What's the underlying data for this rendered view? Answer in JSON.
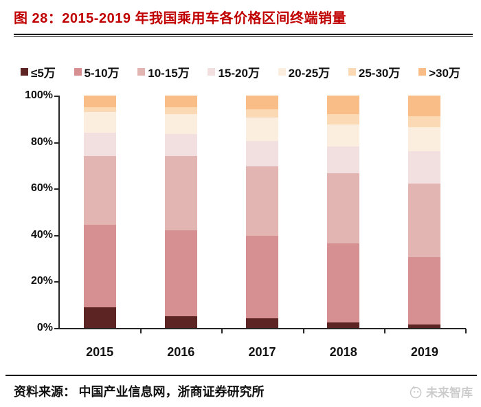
{
  "title": "图 28：2015-2019 年我国乘用车各价格区间终端销量",
  "accent_colors": {
    "title_red": "#C00000",
    "axis_black": "#262626",
    "watermark_gray": "#CCCCCC"
  },
  "chart_data": {
    "type": "bar",
    "stacked": true,
    "normalized_percent": true,
    "grid": false,
    "legend_position": "top",
    "categories": [
      "2015",
      "2016",
      "2017",
      "2018",
      "2019"
    ],
    "series": [
      {
        "name": "≤5万",
        "color": "#5C2423",
        "values": [
          9,
          5,
          4,
          2.5,
          1.5
        ]
      },
      {
        "name": "5-10万",
        "color": "#D69091",
        "values": [
          35.5,
          37,
          35.5,
          34,
          29
        ]
      },
      {
        "name": "10-15万",
        "color": "#E2B5B2",
        "values": [
          29.5,
          32,
          30,
          30,
          31.5
        ]
      },
      {
        "name": "15-20万",
        "color": "#F2E0E1",
        "values": [
          10,
          9.5,
          11,
          11.5,
          14
        ]
      },
      {
        "name": "20-25万",
        "color": "#FCEEDE",
        "values": [
          9,
          8.5,
          10,
          9.5,
          10.5
        ]
      },
      {
        "name": "25-30万",
        "color": "#FBD9B4",
        "values": [
          2,
          3,
          3.5,
          4.5,
          4.5
        ]
      },
      {
        "name": ">30万",
        "color": "#F9BE88",
        "values": [
          5,
          5,
          6,
          8,
          9
        ]
      }
    ],
    "yticks": [
      "0%",
      "20%",
      "40%",
      "60%",
      "80%",
      "100%"
    ],
    "ylim": [
      0,
      100
    ],
    "xlabel": "",
    "ylabel": ""
  },
  "footer": {
    "source_label": "资料来源：",
    "source_text": "中国产业信息网，浙商证券研究所",
    "watermark_text": "未来智库"
  }
}
